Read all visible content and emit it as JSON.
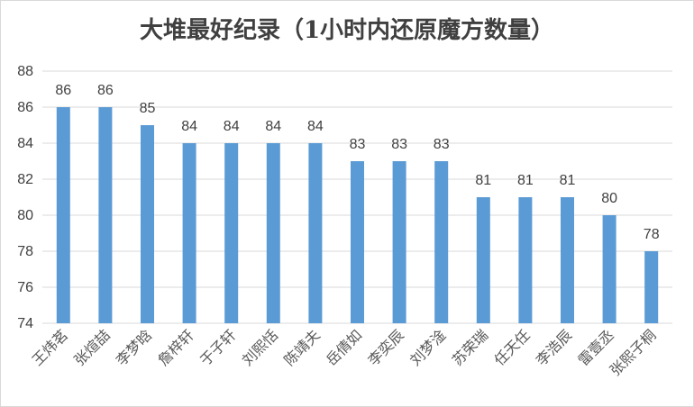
{
  "chart_data": {
    "type": "bar",
    "title": "大堆最好纪录（1小时内还原魔方数量）",
    "xlabel": "",
    "ylabel": "",
    "ylim": [
      74,
      88
    ],
    "yticks": [
      74,
      76,
      78,
      80,
      82,
      84,
      86,
      88
    ],
    "grid": true,
    "color": "#5b9bd5",
    "categories": [
      "王炜茗",
      "张煊喆",
      "李梦晗",
      "詹梓轩",
      "于子轩",
      "刘熙恬",
      "陈靖夫",
      "岳倩如",
      "李奕辰",
      "刘梦淦",
      "苏荣瑞",
      "任天任",
      "李浩辰",
      "雷壹丞",
      "张熙子桐"
    ],
    "values": [
      86,
      86,
      85,
      84,
      84,
      84,
      84,
      83,
      83,
      83,
      81,
      81,
      81,
      80,
      78
    ]
  }
}
